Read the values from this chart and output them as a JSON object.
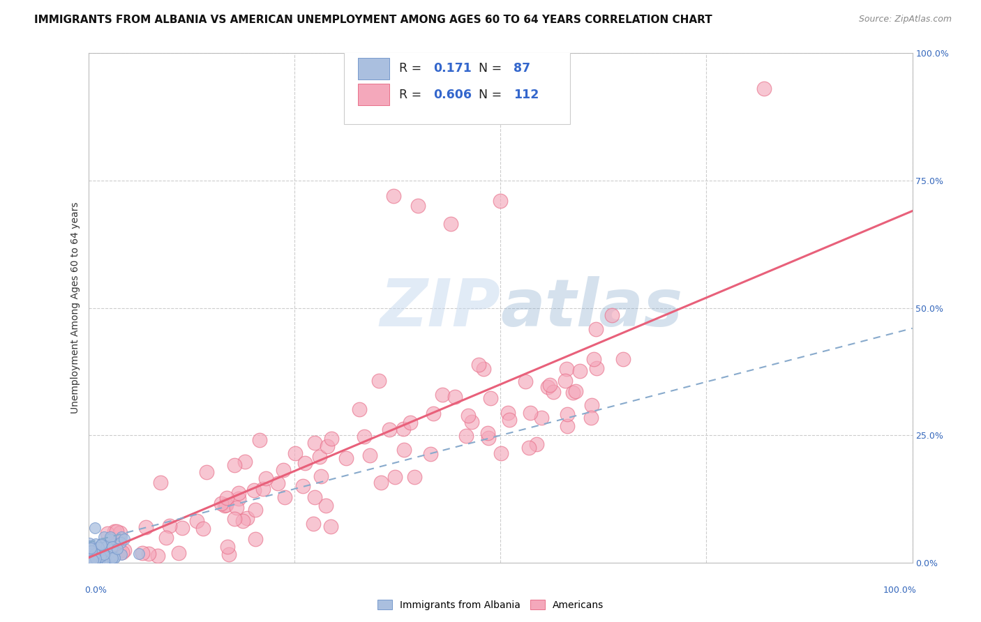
{
  "title": "IMMIGRANTS FROM ALBANIA VS AMERICAN UNEMPLOYMENT AMONG AGES 60 TO 64 YEARS CORRELATION CHART",
  "source": "Source: ZipAtlas.com",
  "ylabel": "Unemployment Among Ages 60 to 64 years",
  "legend_label_blue": "Immigrants from Albania",
  "legend_label_pink": "Americans",
  "R_blue": 0.171,
  "N_blue": 87,
  "R_pink": 0.606,
  "N_pink": 112,
  "blue_color": "#AABFDF",
  "pink_color": "#F4A8BB",
  "blue_edge_color": "#7799CC",
  "pink_edge_color": "#E8708A",
  "blue_line_color": "#88AACC",
  "pink_line_color": "#E8607A",
  "watermark_color": "#C8D8EC",
  "background_color": "#FFFFFF",
  "grid_color": "#CCCCCC",
  "title_color": "#111111",
  "source_color": "#888888",
  "axis_label_color": "#3366BB",
  "ylabel_color": "#333333"
}
